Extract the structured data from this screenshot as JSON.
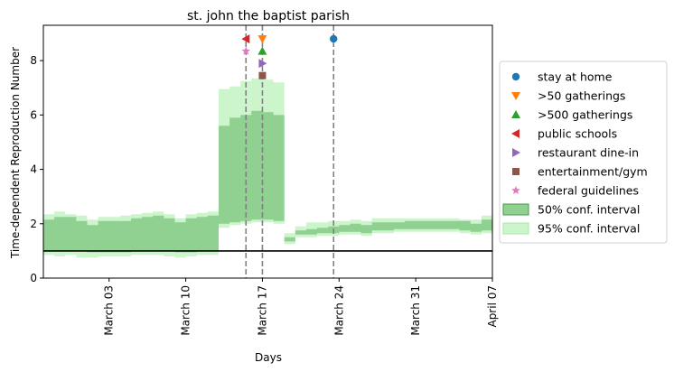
{
  "chart_data": {
    "type": "area",
    "title": "st. john the baptist parish",
    "xlabel": "Days",
    "ylabel": "Time-dependent Reproduction Number",
    "xlim": [
      "2020-02-26",
      "2020-04-07"
    ],
    "ylim": [
      0,
      9.3
    ],
    "yticks": [
      0,
      2,
      4,
      6,
      8
    ],
    "xticks": [
      {
        "date": "2020-03-03",
        "label": "March 03"
      },
      {
        "date": "2020-03-10",
        "label": "March 10"
      },
      {
        "date": "2020-03-17",
        "label": "March 17"
      },
      {
        "date": "2020-03-24",
        "label": "March 24"
      },
      {
        "date": "2020-03-31",
        "label": "March 31"
      },
      {
        "date": "2020-04-07",
        "label": "April 07"
      }
    ],
    "reference_line_y": 1,
    "steps_x_start": "2020-02-26",
    "band50_lower": [
      1.0,
      1.0,
      1.0,
      1.0,
      0.95,
      0.95,
      0.95,
      0.95,
      1.0,
      1.0,
      1.0,
      1.0,
      0.95,
      0.95,
      1.0,
      1.0,
      2.0,
      2.05,
      2.1,
      2.15,
      2.15,
      2.1,
      1.35,
      1.6,
      1.6,
      1.65,
      1.65,
      1.7,
      1.7,
      1.65,
      1.75,
      1.75,
      1.8,
      1.8,
      1.8,
      1.8,
      1.8,
      1.8,
      1.75,
      1.7,
      1.75,
      1.75,
      1.75,
      1.75,
      1.75,
      1.75,
      1.75,
      1.75
    ],
    "band50_upper": [
      2.15,
      2.25,
      2.25,
      2.1,
      1.95,
      2.1,
      2.1,
      2.1,
      2.2,
      2.25,
      2.3,
      2.2,
      2.05,
      2.2,
      2.25,
      2.3,
      5.6,
      5.9,
      6.0,
      6.15,
      6.1,
      6.0,
      1.5,
      1.75,
      1.8,
      1.85,
      1.9,
      1.95,
      2.0,
      1.95,
      2.05,
      2.05,
      2.05,
      2.1,
      2.1,
      2.1,
      2.1,
      2.1,
      2.1,
      2.0,
      2.15,
      2.15,
      2.15,
      2.15,
      2.15,
      2.15,
      2.15,
      2.15
    ],
    "band95_lower": [
      0.85,
      0.8,
      0.85,
      0.75,
      0.75,
      0.8,
      0.8,
      0.8,
      0.85,
      0.85,
      0.85,
      0.8,
      0.75,
      0.8,
      0.85,
      0.85,
      1.85,
      1.95,
      2.0,
      2.05,
      2.05,
      2.0,
      1.25,
      1.5,
      1.5,
      1.55,
      1.55,
      1.6,
      1.6,
      1.55,
      1.65,
      1.65,
      1.7,
      1.7,
      1.7,
      1.7,
      1.7,
      1.7,
      1.65,
      1.6,
      1.65,
      1.65,
      1.65,
      1.65,
      1.65,
      1.65,
      1.65,
      1.65
    ],
    "band95_upper": [
      2.35,
      2.45,
      2.35,
      2.3,
      2.15,
      2.25,
      2.25,
      2.3,
      2.35,
      2.4,
      2.45,
      2.35,
      2.2,
      2.35,
      2.4,
      2.45,
      6.95,
      7.05,
      7.25,
      7.35,
      7.3,
      7.2,
      1.65,
      1.9,
      2.05,
      2.05,
      2.1,
      2.1,
      2.15,
      2.1,
      2.2,
      2.2,
      2.2,
      2.2,
      2.2,
      2.2,
      2.2,
      2.2,
      2.15,
      2.15,
      2.3,
      2.3,
      2.3,
      2.3,
      2.3,
      2.3,
      2.3,
      2.3
    ],
    "event_lines": [
      "2020-03-15.5",
      "2020-03-17",
      "2020-03-23.5"
    ],
    "interventions": [
      {
        "name": "stay at home",
        "date": "2020-03-23.5",
        "y": 8.8,
        "marker": "circle",
        "color": "#1f77b4"
      },
      {
        "name": ">50 gatherings",
        "date": "2020-03-17",
        "y": 8.8,
        "marker": "triangle-down",
        "color": "#ff7f0e"
      },
      {
        "name": ">500 gatherings",
        "date": "2020-03-17",
        "y": 8.35,
        "marker": "triangle-up",
        "color": "#2ca02c"
      },
      {
        "name": "public schools",
        "date": "2020-03-15.5",
        "y": 8.8,
        "marker": "triangle-left",
        "color": "#d62728"
      },
      {
        "name": "restaurant dine-in",
        "date": "2020-03-17",
        "y": 7.9,
        "marker": "triangle-right",
        "color": "#9467bd"
      },
      {
        "name": "entertainment/gym",
        "date": "2020-03-17",
        "y": 7.45,
        "marker": "square",
        "color": "#8c564b"
      },
      {
        "name": "federal guidelines",
        "date": "2020-03-15.5",
        "y": 8.35,
        "marker": "star",
        "color": "#e377c2"
      }
    ],
    "legend": {
      "placement": "center-right",
      "entries": [
        {
          "label": "stay at home",
          "marker": "circle",
          "color": "#1f77b4"
        },
        {
          "label": ">50 gatherings",
          "marker": "triangle-down",
          "color": "#ff7f0e"
        },
        {
          "label": ">500 gatherings",
          "marker": "triangle-up",
          "color": "#2ca02c"
        },
        {
          "label": "public schools",
          "marker": "triangle-left",
          "color": "#d62728"
        },
        {
          "label": "restaurant dine-in",
          "marker": "triangle-right",
          "color": "#9467bd"
        },
        {
          "label": "entertainment/gym",
          "marker": "square",
          "color": "#8c564b"
        },
        {
          "label": "federal guidelines",
          "marker": "star",
          "color": "#e377c2"
        },
        {
          "label": "50% conf. interval",
          "marker": "patch",
          "color": "#90d090",
          "edge": "#4a9a4a"
        },
        {
          "label": "95% conf. interval",
          "marker": "patch",
          "color": "#ccf5cc",
          "edge": "#a8e6a8"
        }
      ]
    },
    "colors": {
      "band50": "#90d090",
      "band95": "#ccf5cc",
      "event_line": "#808080",
      "reference_line": "#000000"
    }
  }
}
